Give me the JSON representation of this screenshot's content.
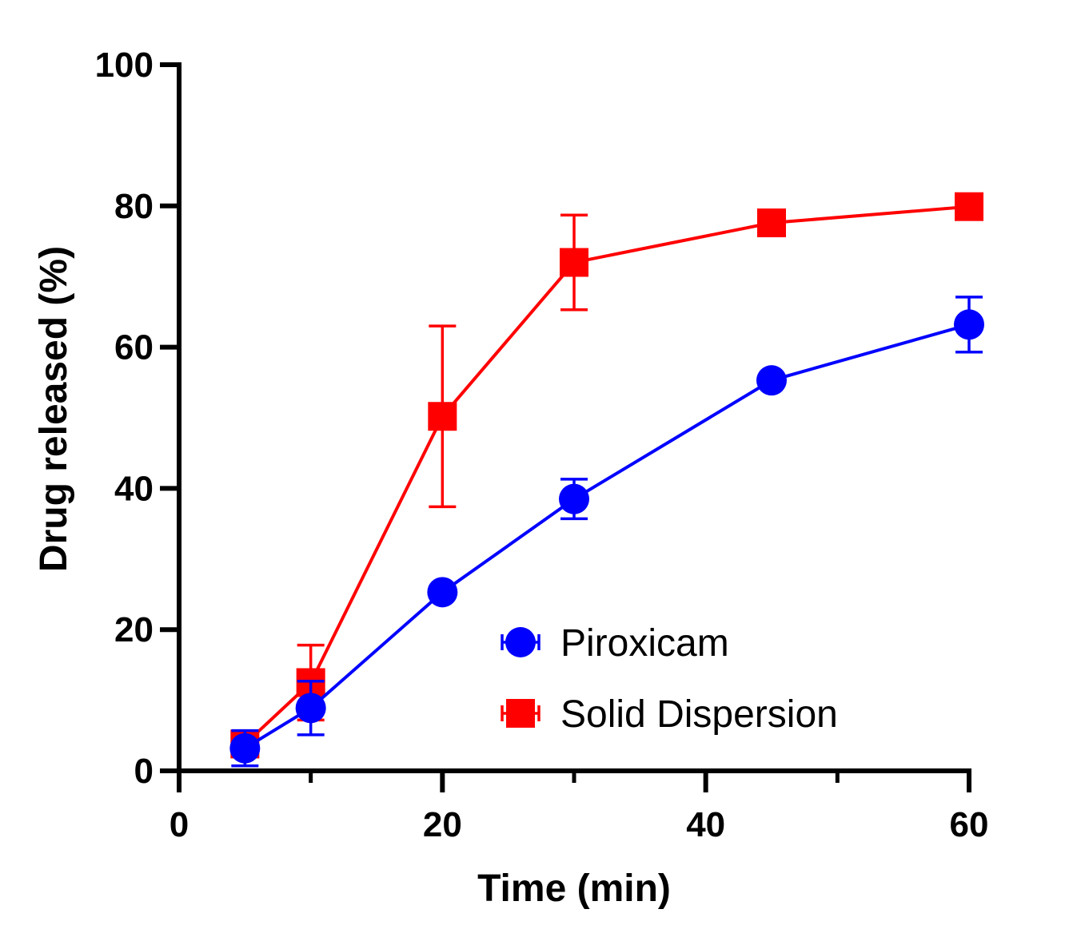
{
  "chart_data": {
    "type": "line",
    "xlabel": "Time (min)",
    "ylabel": "Drug released (%)",
    "xlim": [
      0,
      60
    ],
    "ylim": [
      0,
      100
    ],
    "x_ticks": [
      "0",
      "20",
      "40",
      "60"
    ],
    "x_minor_ticks": [
      10,
      30,
      50
    ],
    "y_ticks": [
      "0",
      "20",
      "40",
      "60",
      "80",
      "100"
    ],
    "grid": false,
    "legend_position": "bottom-right",
    "series": [
      {
        "name": "Piroxicam",
        "color": "#0000ff",
        "marker": "circle",
        "x": [
          5,
          10,
          20,
          30,
          45,
          60
        ],
        "y": [
          3.2,
          8.9,
          25.3,
          38.5,
          55.3,
          63.2
        ],
        "error": [
          2.5,
          3.8,
          0.8,
          2.8,
          0.5,
          3.9
        ]
      },
      {
        "name": "Solid Dispersion",
        "color": "#ff0000",
        "marker": "square",
        "x": [
          5,
          10,
          20,
          30,
          45,
          60
        ],
        "y": [
          3.8,
          12.5,
          50.2,
          72.0,
          77.6,
          79.9
        ],
        "error": [
          1.5,
          5.3,
          12.8,
          6.7,
          0.5,
          0.5
        ]
      }
    ]
  }
}
